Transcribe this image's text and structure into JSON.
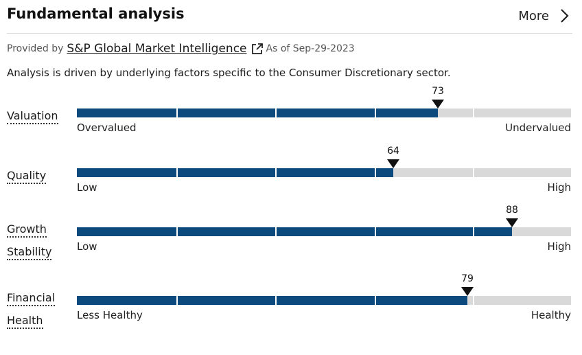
{
  "header": {
    "title": "Fundamental analysis",
    "more_label": "More"
  },
  "source": {
    "prefix": "Provided by",
    "provider": "S&P Global Market Intelligence",
    "as_of": "As of Sep-29-2023"
  },
  "description": "Analysis is driven by underlying factors specific to the Consumer Discretionary sector.",
  "metrics": [
    {
      "label_lines": [
        "Valuation"
      ],
      "score": 73,
      "min_label": "Overvalued",
      "max_label": "Undervalued"
    },
    {
      "label_lines": [
        "Quality"
      ],
      "score": 64,
      "min_label": "Low",
      "max_label": "High"
    },
    {
      "label_lines": [
        "Growth",
        "Stability"
      ],
      "score": 88,
      "min_label": "Low",
      "max_label": "High"
    },
    {
      "label_lines": [
        "Financial",
        "Health"
      ],
      "score": 79,
      "min_label": "Less Healthy",
      "max_label": "Healthy"
    }
  ],
  "colors": {
    "fill": "#0c4a7e",
    "track": "#d9d9d9",
    "marker": "#111111"
  }
}
